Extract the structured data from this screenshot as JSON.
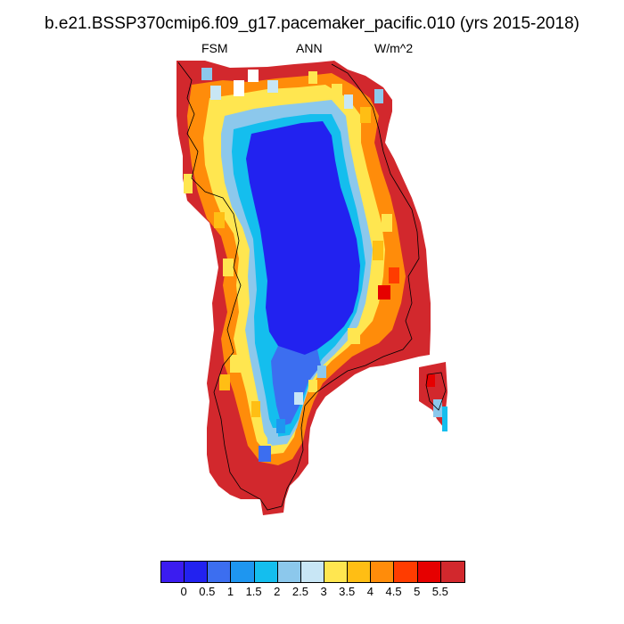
{
  "title": "b.e21.BSSP370cmip6.f09_g17.pacemaker_pacific.010 (yrs 2015-2018)",
  "subtitle": {
    "left": "FSM",
    "center": "ANN",
    "right": "W/m^2"
  },
  "colorbar": {
    "colors": [
      "#3b1cf0",
      "#2222f0",
      "#3c6ef0",
      "#1e96f0",
      "#14beee",
      "#8cc8ec",
      "#c8e6f5",
      "#ffe650",
      "#ffbe14",
      "#ff8c0a",
      "#ff3c00",
      "#e60000",
      "#d2282d"
    ],
    "labels": [
      "0",
      "0.5",
      "1",
      "1.5",
      "2",
      "2.5",
      "3",
      "3.5",
      "4",
      "4.5",
      "5",
      "5.5"
    ]
  },
  "map": {
    "region": "Greenland",
    "variable": "FSM",
    "period": "ANN",
    "units": "W/m^2"
  }
}
